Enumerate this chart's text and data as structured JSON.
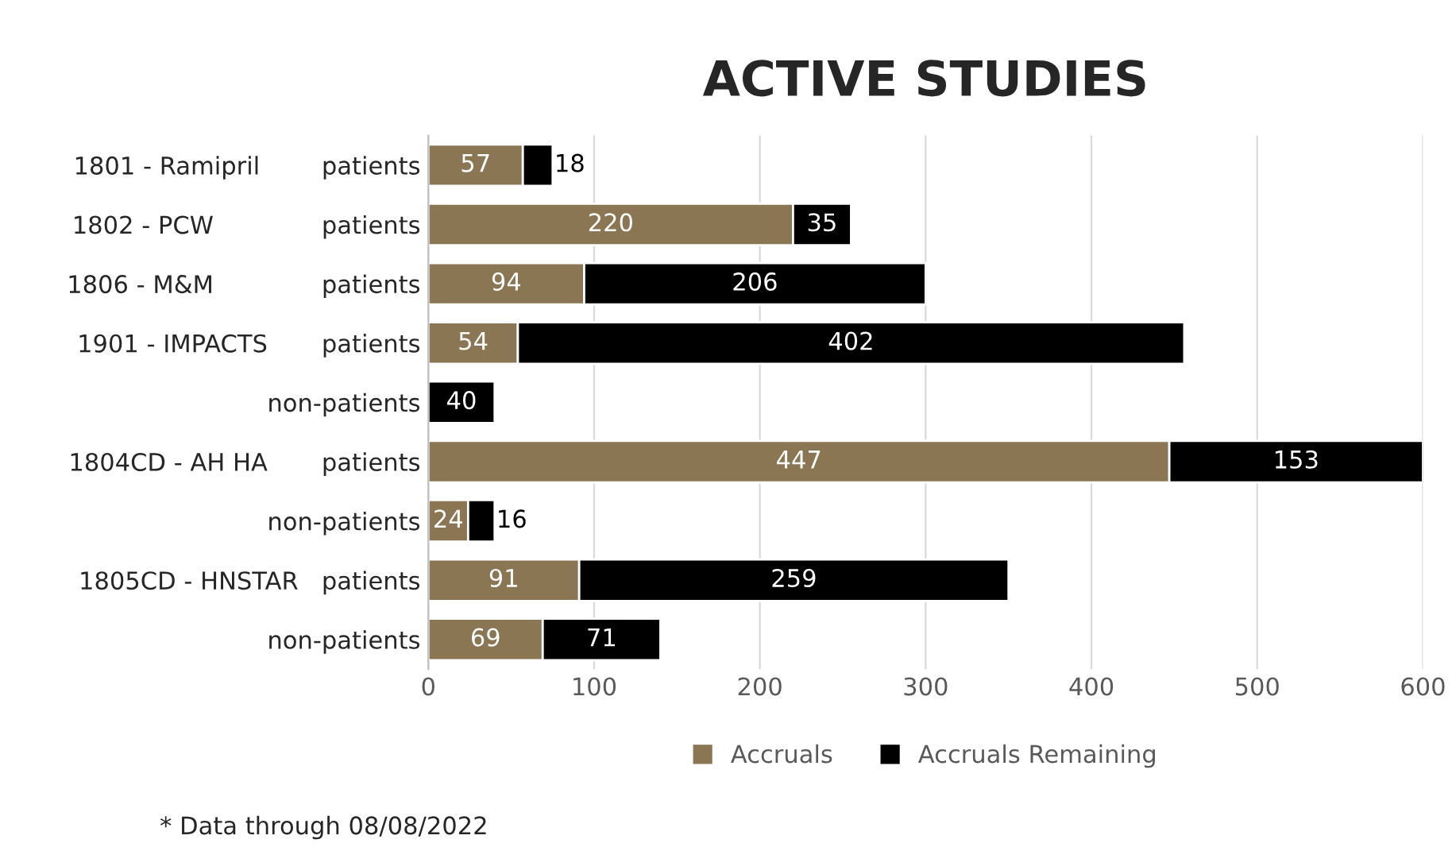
{
  "chart_data": {
    "type": "bar",
    "orientation": "horizontal",
    "stacked": true,
    "title": "ACTIVE STUDIES",
    "categories": [
      "1801 - Ramipril        patients",
      "1802 - PCW              patients",
      "1806 - M&M              patients",
      "1901 - IMPACTS       patients",
      "non-patients",
      "1804CD - AH HA       patients",
      "non-patients",
      "1805CD - HNSTAR   patients",
      "non-patients"
    ],
    "series": [
      {
        "name": "Accruals",
        "color": "#8b7653",
        "values": [
          57,
          220,
          94,
          54,
          null,
          447,
          24,
          91,
          69
        ]
      },
      {
        "name": "Accruals Remaining",
        "color": "#000000",
        "values": [
          18,
          35,
          206,
          402,
          40,
          153,
          16,
          259,
          71
        ]
      }
    ],
    "xlim": [
      0,
      600
    ],
    "xticks": [
      0,
      100,
      200,
      300,
      400,
      500,
      600
    ],
    "grid": "x",
    "legend": "bottom",
    "data_labels": true,
    "annotations": [
      "* Data through 08/08/2022"
    ]
  }
}
